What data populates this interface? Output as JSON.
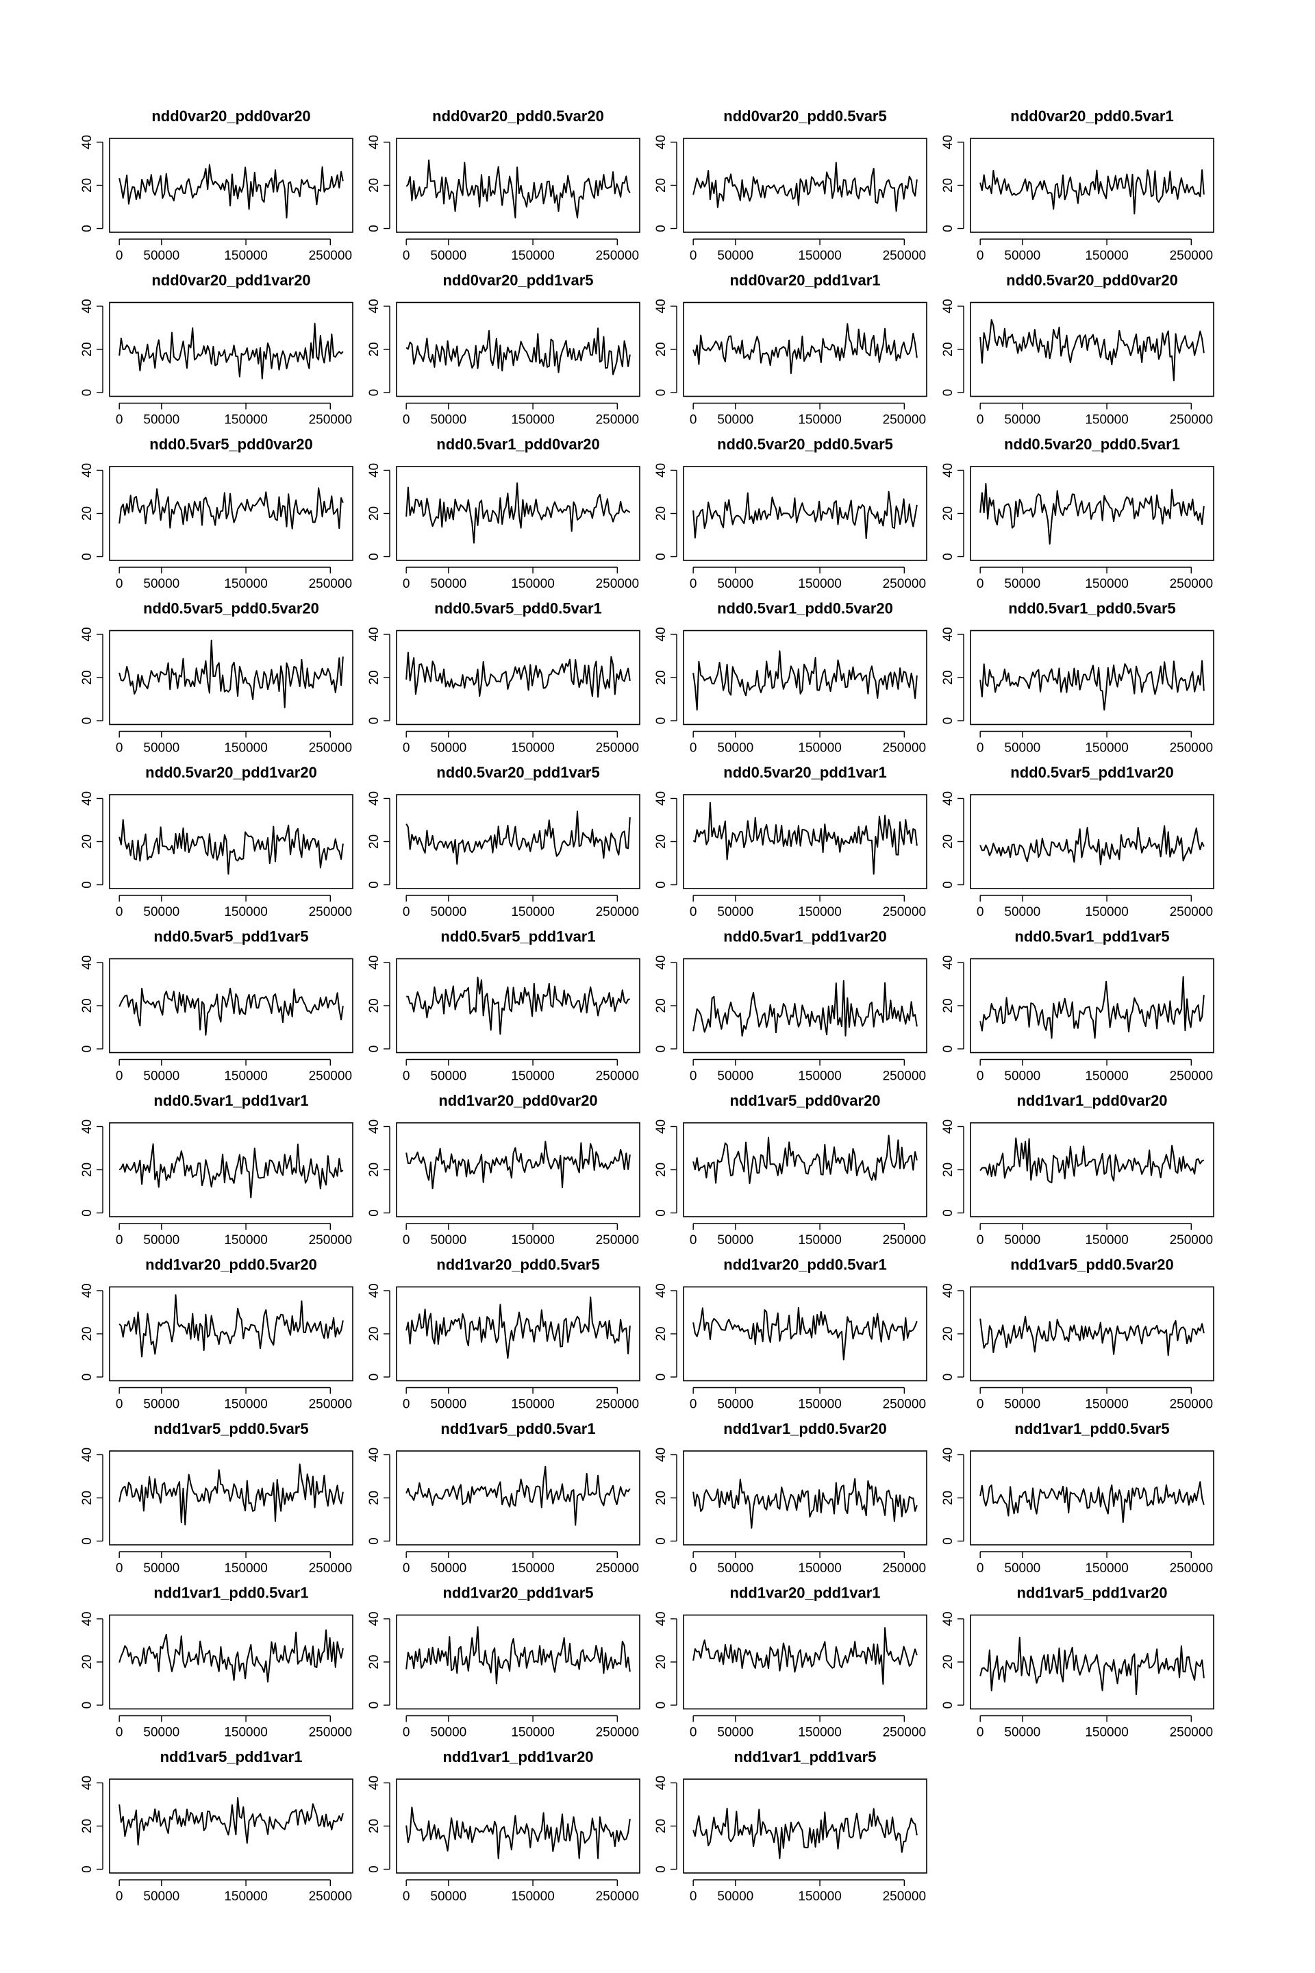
{
  "chart_data": {
    "type": "line",
    "layout": "grid-4-columns",
    "xlim": [
      0,
      265000
    ],
    "ylim": [
      0,
      40
    ],
    "x_ticks": [
      0,
      50000,
      150000,
      250000
    ],
    "y_ticks": [
      0,
      20,
      40
    ],
    "grid": false,
    "legend": "none",
    "line_color": "#000000",
    "approx_points_per_series": 120,
    "panels": [
      {
        "title": "ndd0var20_pdd0var20",
        "mean": 19,
        "spread": 4.2
      },
      {
        "title": "ndd0var20_pdd0.5var20",
        "mean": 18,
        "spread": 4.8
      },
      {
        "title": "ndd0var20_pdd0.5var5",
        "mean": 19,
        "spread": 4.2
      },
      {
        "title": "ndd0var20_pdd0.5var1",
        "mean": 19,
        "spread": 4.6
      },
      {
        "title": "ndd0var20_pdd1var20",
        "mean": 18,
        "spread": 4.2
      },
      {
        "title": "ndd0var20_pdd1var5",
        "mean": 18,
        "spread": 4.2
      },
      {
        "title": "ndd0var20_pdd1var1",
        "mean": 20,
        "spread": 4.2
      },
      {
        "title": "ndd0.5var20_pdd0var20",
        "mean": 22,
        "spread": 4.4
      },
      {
        "title": "ndd0.5var5_pdd0var20",
        "mean": 22,
        "spread": 4.6
      },
      {
        "title": "ndd0.5var1_pdd0var20",
        "mean": 21,
        "spread": 4.4
      },
      {
        "title": "ndd0.5var20_pdd0.5var5",
        "mean": 20,
        "spread": 4.2
      },
      {
        "title": "ndd0.5var20_pdd0.5var1",
        "mean": 22,
        "spread": 4.4
      },
      {
        "title": "ndd0.5var5_pdd0.5var20",
        "mean": 20,
        "spread": 4.4
      },
      {
        "title": "ndd0.5var5_pdd0.5var1",
        "mean": 20,
        "spread": 4.6
      },
      {
        "title": "ndd0.5var1_pdd0.5var20",
        "mean": 19,
        "spread": 4.6
      },
      {
        "title": "ndd0.5var1_pdd0.5var5",
        "mean": 19,
        "spread": 4.2
      },
      {
        "title": "ndd0.5var20_pdd1var20",
        "mean": 18,
        "spread": 4.8
      },
      {
        "title": "ndd0.5var20_pdd1var5",
        "mean": 20,
        "spread": 3.8
      },
      {
        "title": "ndd0.5var20_pdd1var1",
        "mean": 23,
        "spread": 4.6
      },
      {
        "title": "ndd0.5var5_pdd1var20",
        "mean": 17,
        "spread": 3.8
      },
      {
        "title": "ndd0.5var5_pdd1var5",
        "mean": 21,
        "spread": 4.0
      },
      {
        "title": "ndd0.5var5_pdd1var1",
        "mean": 22,
        "spread": 4.2
      },
      {
        "title": "ndd0.5var1_pdd1var20",
        "mean": 16,
        "spread": 4.4
      },
      {
        "title": "ndd0.5var1_pdd1var5",
        "mean": 17,
        "spread": 4.6
      },
      {
        "title": "ndd0.5var1_pdd1var1",
        "mean": 20,
        "spread": 4.6
      },
      {
        "title": "ndd1var20_pdd0var20",
        "mean": 23,
        "spread": 3.8
      },
      {
        "title": "ndd1var5_pdd0var20",
        "mean": 23,
        "spread": 4.4
      },
      {
        "title": "ndd1var1_pdd0var20",
        "mean": 22,
        "spread": 4.6
      },
      {
        "title": "ndd1var20_pdd0.5var20",
        "mean": 23,
        "spread": 4.4
      },
      {
        "title": "ndd1var20_pdd0.5var5",
        "mean": 23,
        "spread": 4.2
      },
      {
        "title": "ndd1var20_pdd0.5var1",
        "mean": 23,
        "spread": 4.2
      },
      {
        "title": "ndd1var5_pdd0.5var20",
        "mean": 21,
        "spread": 4.2
      },
      {
        "title": "ndd1var5_pdd0.5var5",
        "mean": 22,
        "spread": 4.4
      },
      {
        "title": "ndd1var5_pdd0.5var1",
        "mean": 22,
        "spread": 4.2
      },
      {
        "title": "ndd1var1_pdd0.5var20",
        "mean": 19,
        "spread": 4.2
      },
      {
        "title": "ndd1var1_pdd0.5var5",
        "mean": 20,
        "spread": 4.2
      },
      {
        "title": "ndd1var1_pdd0.5var1",
        "mean": 22,
        "spread": 4.4
      },
      {
        "title": "ndd1var20_pdd1var5",
        "mean": 22,
        "spread": 4.4
      },
      {
        "title": "ndd1var20_pdd1var1",
        "mean": 22,
        "spread": 4.2
      },
      {
        "title": "ndd1var5_pdd1var20",
        "mean": 18,
        "spread": 4.4
      },
      {
        "title": "ndd1var5_pdd1var1",
        "mean": 23,
        "spread": 3.8
      },
      {
        "title": "ndd1var1_pdd1var20",
        "mean": 17,
        "spread": 4.4
      },
      {
        "title": "ndd1var1_pdd1var5",
        "mean": 18,
        "spread": 4.2
      }
    ]
  }
}
